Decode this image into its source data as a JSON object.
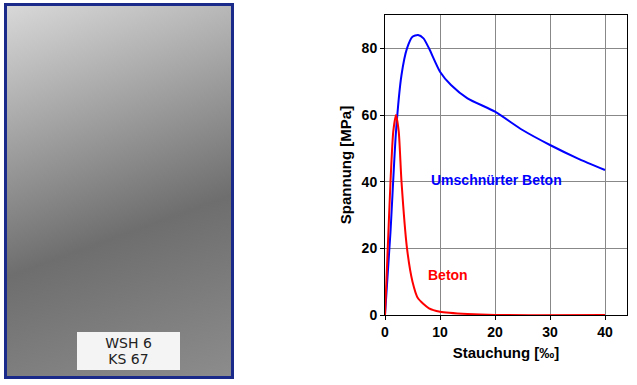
{
  "chart_data": {
    "type": "line",
    "x_label": "Stauchung [‰]",
    "y_label": "Spannung [MPa]",
    "xlim": [
      0,
      44
    ],
    "ylim": [
      0,
      90
    ],
    "xticks": [
      0,
      10,
      20,
      30,
      40
    ],
    "yticks": [
      0,
      20,
      40,
      60,
      80
    ],
    "grid": true,
    "photo_label": [
      "WSH 6",
      "KS 67"
    ],
    "series": [
      {
        "name": "Umschnürter Beton",
        "color": "#0000ff",
        "x": [
          0,
          1,
          2,
          3,
          4,
          5,
          6,
          7,
          8,
          10,
          12,
          15,
          20,
          25,
          30,
          35,
          40
        ],
        "values": [
          0,
          25,
          55,
          72,
          80,
          83.5,
          84,
          83,
          80,
          73,
          69,
          65,
          61,
          55.5,
          51,
          47,
          43.5
        ]
      },
      {
        "name": "Beton",
        "color": "#ff0000",
        "x": [
          0,
          0.5,
          1,
          1.5,
          2,
          2.5,
          3,
          4,
          5,
          6,
          8,
          10,
          15,
          20,
          40
        ],
        "values": [
          0,
          20,
          40,
          55,
          60,
          55,
          40,
          20,
          10,
          5,
          2,
          1,
          0.3,
          0,
          0
        ]
      }
    ]
  }
}
